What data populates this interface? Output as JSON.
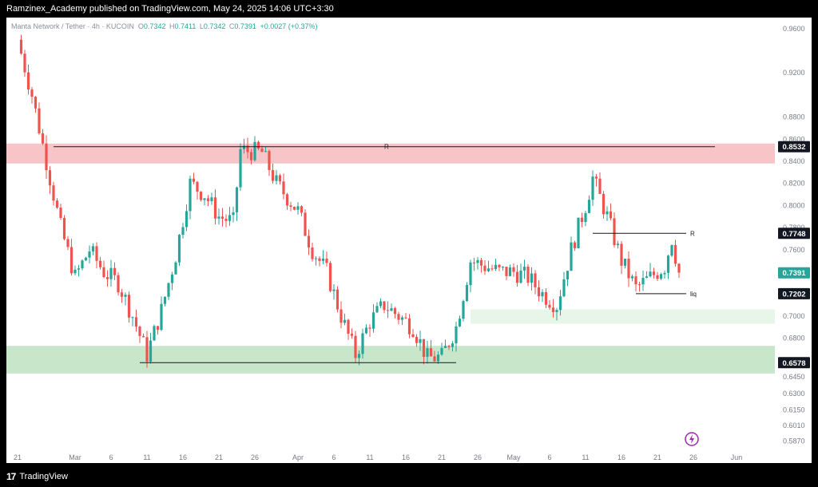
{
  "header": {
    "publisher": "Ramzinex_Academy published on TradingView.com, May 24, 2025 14:06 UTC+3:30"
  },
  "legend": {
    "symbol": "Manta Network / Tether · 4h · KUCOIN",
    "open_label": "O",
    "open": "0.7342",
    "high_label": "H",
    "high": "0.7411",
    "low_label": "L",
    "low": "0.7342",
    "close_label": "C",
    "close": "0.7391",
    "change": "+0.0027 (+0.37%)"
  },
  "footer": {
    "brand": "TradingView",
    "logo_text": "17"
  },
  "colors": {
    "up": "#26a69a",
    "down": "#ef5350",
    "resistance_zone": "#f7c5c8",
    "support_zone": "#c8e6c9",
    "small_support_zone": "#e8f5e9",
    "last_price_bg": "#26a69a"
  },
  "icons": {
    "flash": "lightning-icon"
  },
  "chart_data": {
    "type": "candlestick",
    "timeframe": "4h",
    "ylim": [
      0.58,
      0.97
    ],
    "y_ticks": [
      "0.9600",
      "0.9200",
      "0.8800",
      "0.8600",
      "0.8400",
      "0.8200",
      "0.8000",
      "0.7800",
      "0.7600",
      "0.7400",
      "0.7200",
      "0.7000",
      "0.6800",
      "0.6600",
      "0.6450",
      "0.6300",
      "0.6150",
      "0.6010",
      "0.5870"
    ],
    "x_ticks": [
      "21",
      "Mar",
      "6",
      "11",
      "16",
      "21",
      "26",
      "Apr",
      "6",
      "11",
      "16",
      "21",
      "26",
      "May",
      "6",
      "11",
      "16",
      "21",
      "26",
      "Jun"
    ],
    "price_labels": [
      {
        "value": 0.8532,
        "text": "0.8532",
        "style": "dark"
      },
      {
        "value": 0.7748,
        "text": "0.7748",
        "style": "dark"
      },
      {
        "value": 0.7391,
        "text": "0.7391",
        "style": "last"
      },
      {
        "value": 0.7202,
        "text": "0.7202",
        "style": "dark"
      },
      {
        "value": 0.6578,
        "text": "0.6578",
        "style": "dark"
      }
    ],
    "lines": [
      {
        "label": "R",
        "value": 0.8532,
        "from": "Feb 26",
        "to": "May 29"
      },
      {
        "label": "R",
        "value": 0.7748,
        "from": "May 12",
        "to": "May 25"
      },
      {
        "label": "liq",
        "value": 0.7202,
        "from": "May 18",
        "to": "May 25"
      },
      {
        "label": "",
        "value": 0.6578,
        "from": "Mar 10",
        "to": "Apr 23"
      }
    ],
    "zones": [
      {
        "name": "resistance",
        "low": 0.838,
        "high": 0.856
      },
      {
        "name": "support",
        "low": 0.648,
        "high": 0.673
      },
      {
        "name": "minor-support",
        "low": 0.693,
        "high": 0.706
      }
    ],
    "trend_path": [
      {
        "t": "Feb 21",
        "p": 0.95
      },
      {
        "t": "Feb 23",
        "p": 0.9
      },
      {
        "t": "Feb 25",
        "p": 0.84
      },
      {
        "t": "Feb 27",
        "p": 0.78
      },
      {
        "t": "Mar 1",
        "p": 0.735
      },
      {
        "t": "Mar 3",
        "p": 0.76
      },
      {
        "t": "Mar 5",
        "p": 0.74
      },
      {
        "t": "Mar 7",
        "p": 0.73
      },
      {
        "t": "Mar 9",
        "p": 0.7
      },
      {
        "t": "Mar 11",
        "p": 0.665
      },
      {
        "t": "Mar 13",
        "p": 0.705
      },
      {
        "t": "Mar 15",
        "p": 0.755
      },
      {
        "t": "Mar 17",
        "p": 0.82
      },
      {
        "t": "Mar 19",
        "p": 0.81
      },
      {
        "t": "Mar 21",
        "p": 0.79
      },
      {
        "t": "Mar 23",
        "p": 0.785
      },
      {
        "t": "Mar 24",
        "p": 0.85
      },
      {
        "t": "Mar 27",
        "p": 0.848
      },
      {
        "t": "Mar 29",
        "p": 0.82
      },
      {
        "t": "Apr 1",
        "p": 0.795
      },
      {
        "t": "Apr 3",
        "p": 0.76
      },
      {
        "t": "Apr 5",
        "p": 0.74
      },
      {
        "t": "Apr 7",
        "p": 0.7
      },
      {
        "t": "Apr 9",
        "p": 0.665
      },
      {
        "t": "Apr 11",
        "p": 0.695
      },
      {
        "t": "Apr 13",
        "p": 0.71
      },
      {
        "t": "Apr 15",
        "p": 0.7
      },
      {
        "t": "Apr 17",
        "p": 0.69
      },
      {
        "t": "Apr 19",
        "p": 0.662
      },
      {
        "t": "Apr 21",
        "p": 0.663
      },
      {
        "t": "Apr 23",
        "p": 0.69
      },
      {
        "t": "Apr 25",
        "p": 0.75
      },
      {
        "t": "Apr 27",
        "p": 0.745
      },
      {
        "t": "Apr 29",
        "p": 0.74
      },
      {
        "t": "May 1",
        "p": 0.74
      },
      {
        "t": "May 3",
        "p": 0.735
      },
      {
        "t": "May 5",
        "p": 0.72
      },
      {
        "t": "May 7",
        "p": 0.71
      },
      {
        "t": "May 9",
        "p": 0.76
      },
      {
        "t": "May 11",
        "p": 0.8
      },
      {
        "t": "May 12",
        "p": 0.825
      },
      {
        "t": "May 14",
        "p": 0.79
      },
      {
        "t": "May 16",
        "p": 0.75
      },
      {
        "t": "May 18",
        "p": 0.725
      },
      {
        "t": "May 20",
        "p": 0.735
      },
      {
        "t": "May 22",
        "p": 0.745
      },
      {
        "t": "May 23",
        "p": 0.77
      },
      {
        "t": "May 24",
        "p": 0.7391
      }
    ]
  }
}
